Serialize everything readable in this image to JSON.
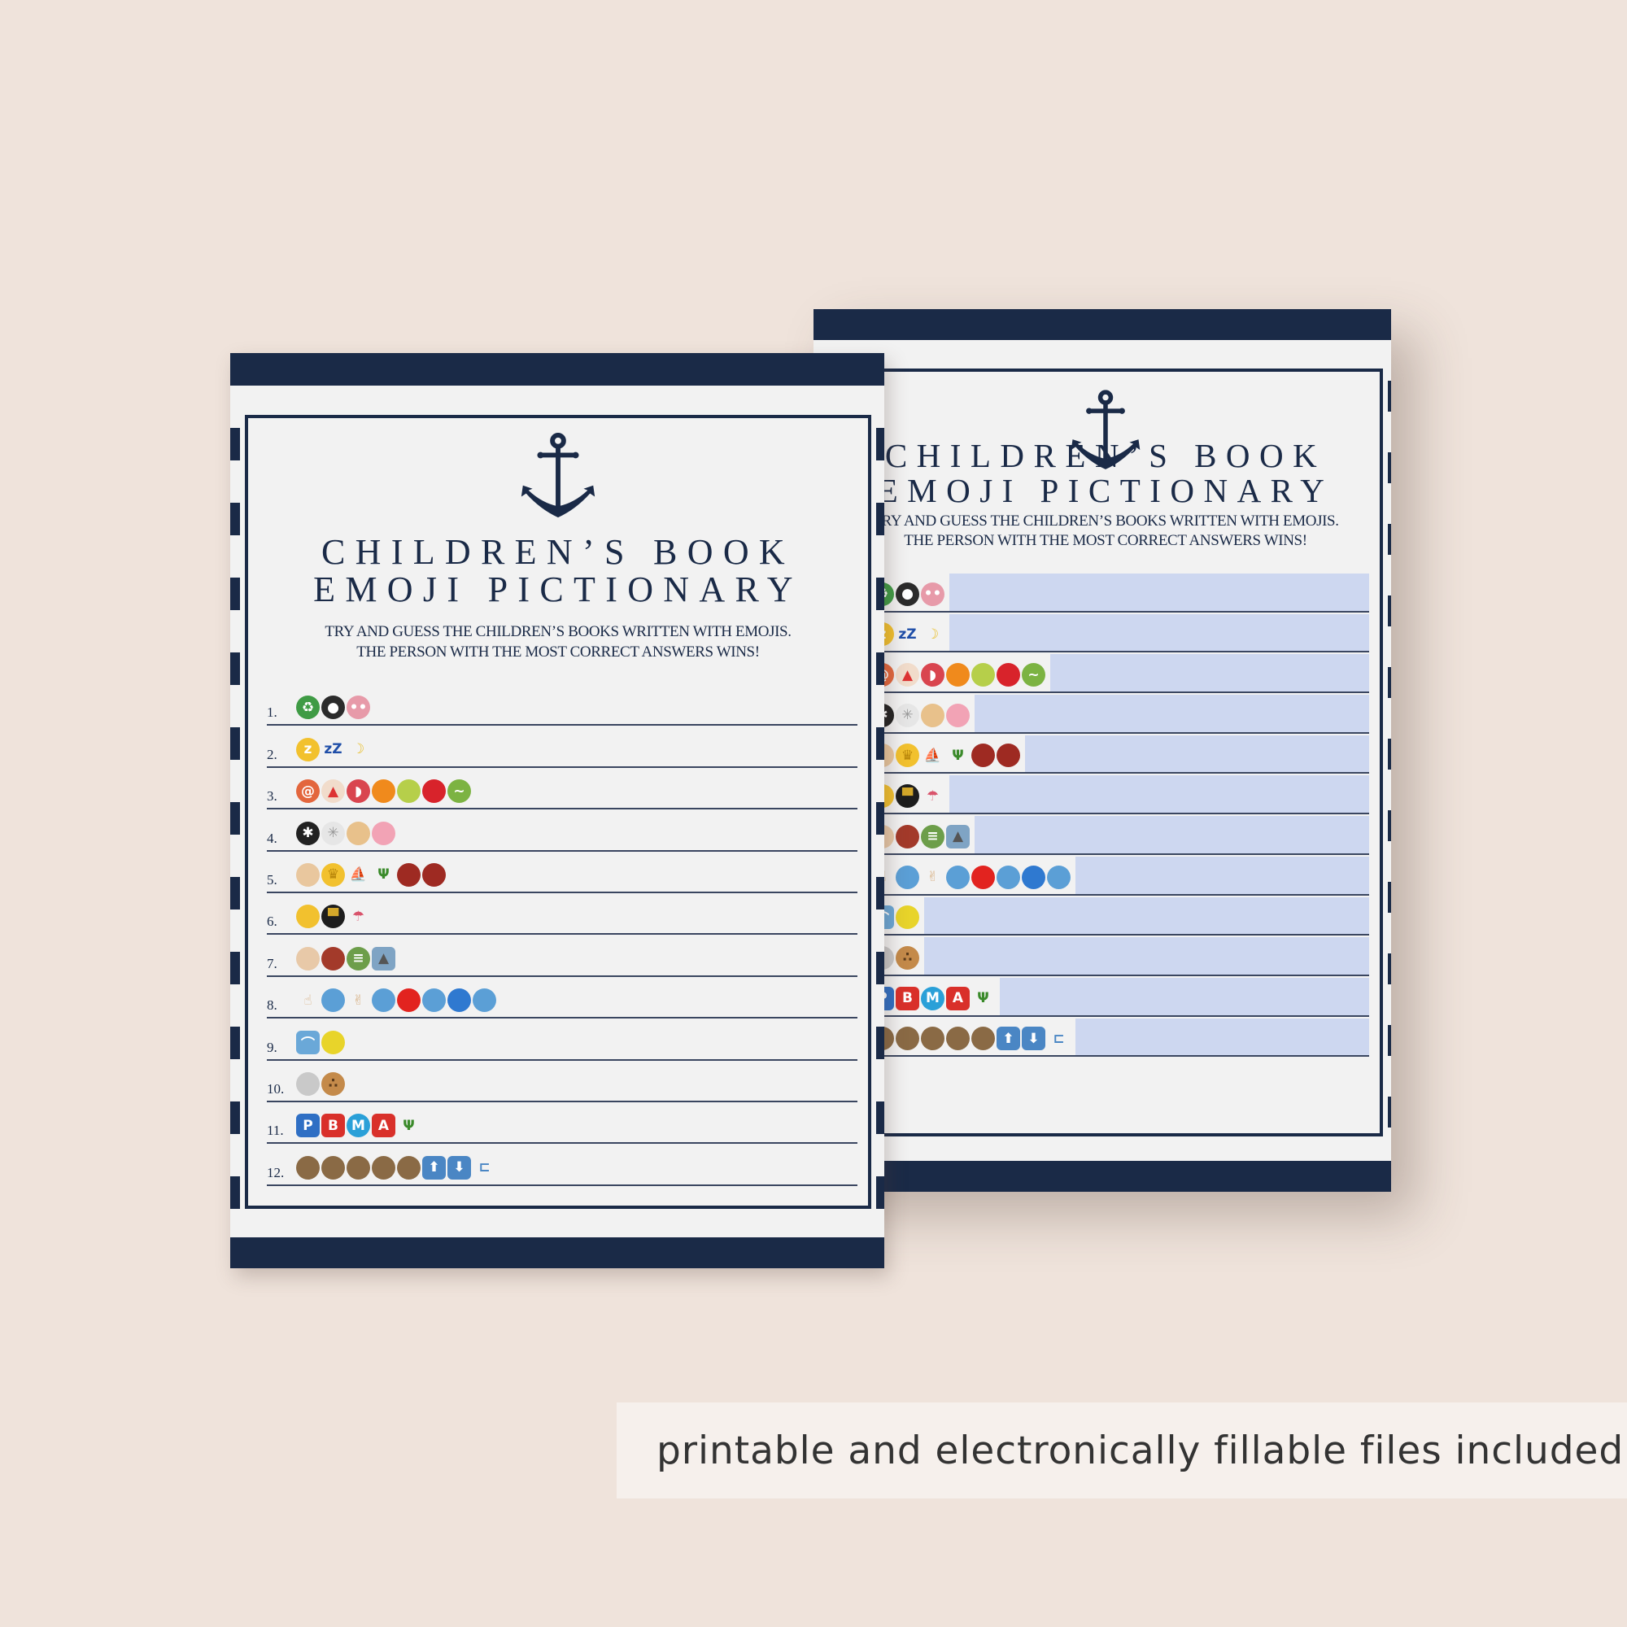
{
  "sheet": {
    "title_line1": "CHILDREN’S BOOK",
    "title_line2": "EMOJI PICTIONARY",
    "instructions_line1": "TRY AND GUESS THE CHILDREN’S BOOKS WRITTEN WITH EMOJIS.",
    "instructions_line2": "THE PERSON WITH THE MOST CORRECT ANSWERS WINS!",
    "anchor_icon": "anchor-icon",
    "rows": [
      {
        "number": "1.",
        "emojis": [
          {
            "icon": "recycle-icon",
            "color": "#3f9b45",
            "glyph": "♻"
          },
          {
            "icon": "frying-pan-egg-icon",
            "color": "#2b2b2b",
            "glyph": "●"
          },
          {
            "icon": "pig-nose-icon",
            "color": "#e79aa9",
            "glyph": "••"
          }
        ]
      },
      {
        "number": "2.",
        "emojis": [
          {
            "icon": "sleeping-face-icon",
            "color": "#f2c12e",
            "glyph": "z"
          },
          {
            "icon": "zzz-icon",
            "color": "#f2f2f2",
            "glyph": "zZ",
            "text": "#1f4ea8"
          },
          {
            "icon": "crescent-moon-icon",
            "color": "#f2f2f2",
            "glyph": "☽",
            "text": "#e9bf2a"
          }
        ]
      },
      {
        "number": "3.",
        "emojis": [
          {
            "icon": "lollipop-icon",
            "color": "#e3663d",
            "glyph": "@"
          },
          {
            "icon": "shortcake-icon",
            "color": "#f1dccb",
            "glyph": "▲",
            "text": "#d33"
          },
          {
            "icon": "watermelon-icon",
            "color": "#d9454f",
            "glyph": "◗"
          },
          {
            "icon": "tangerine-icon",
            "color": "#f08a1c",
            "glyph": ""
          },
          {
            "icon": "pear-icon",
            "color": "#b6cf4a",
            "glyph": ""
          },
          {
            "icon": "apple-icon",
            "color": "#d8232b",
            "glyph": ""
          },
          {
            "icon": "caterpillar-icon",
            "color": "#7cb342",
            "glyph": "~"
          }
        ]
      },
      {
        "number": "4.",
        "emojis": [
          {
            "icon": "spider-icon",
            "color": "#222222",
            "glyph": "✱"
          },
          {
            "icon": "spider-web-icon",
            "color": "#e6e6e6",
            "glyph": "✳",
            "text": "#999"
          },
          {
            "icon": "girl-icon",
            "color": "#e8c18b",
            "glyph": ""
          },
          {
            "icon": "pig-face-icon",
            "color": "#f2a3b5",
            "glyph": ""
          }
        ]
      },
      {
        "number": "5.",
        "emojis": [
          {
            "icon": "boy-icon",
            "color": "#e9c79e",
            "glyph": ""
          },
          {
            "icon": "crown-icon",
            "color": "#f2c12e",
            "glyph": "♛",
            "text": "#b8860b"
          },
          {
            "icon": "sailboat-icon",
            "color": "#f2f2f2",
            "glyph": "⛵",
            "text": "#e55"
          },
          {
            "icon": "palm-tree-icon",
            "color": "#f2f2f2",
            "glyph": "Ψ",
            "text": "#3a8a2a"
          },
          {
            "icon": "ogre-icon",
            "color": "#9e2a22",
            "glyph": ""
          },
          {
            "icon": "ogre-icon",
            "color": "#9e2a22",
            "glyph": ""
          }
        ]
      },
      {
        "number": "6.",
        "emojis": [
          {
            "icon": "smiling-cat-icon",
            "color": "#f2c12e",
            "glyph": ""
          },
          {
            "icon": "top-hat-icon",
            "color": "#1d1d1d",
            "glyph": "▀",
            "text": "#d4a82a"
          },
          {
            "icon": "closed-umbrella-icon",
            "color": "#f2f2f2",
            "glyph": "☂",
            "text": "#d9536b"
          }
        ]
      },
      {
        "number": "7.",
        "emojis": [
          {
            "icon": "flexed-biceps-icon",
            "color": "#e8c9a8",
            "glyph": ""
          },
          {
            "icon": "steam-locomotive-icon",
            "color": "#a33a2a",
            "glyph": ""
          },
          {
            "icon": "railway-track-icon",
            "color": "#6d9e4a",
            "glyph": "≡"
          },
          {
            "icon": "mountain-picture-icon",
            "color": "#7fa4c4",
            "glyph": "▲",
            "text": "#555",
            "square": true
          }
        ]
      },
      {
        "number": "8.",
        "emojis": [
          {
            "icon": "index-pointing-up-icon",
            "color": "#f2f2f2",
            "glyph": "☝",
            "text": "#d9b48a"
          },
          {
            "icon": "fish-icon",
            "color": "#5b9fd6",
            "glyph": ""
          },
          {
            "icon": "victory-hand-icon",
            "color": "#f2f2f2",
            "glyph": "✌",
            "text": "#d9b48a"
          },
          {
            "icon": "fish-icon",
            "color": "#5b9fd6",
            "glyph": ""
          },
          {
            "icon": "red-circle-icon",
            "color": "#e2231f",
            "glyph": ""
          },
          {
            "icon": "fish-icon",
            "color": "#5b9fd6",
            "glyph": ""
          },
          {
            "icon": "blue-circle-icon",
            "color": "#2f79d0",
            "glyph": ""
          },
          {
            "icon": "fish-icon",
            "color": "#5b9fd6",
            "glyph": ""
          }
        ]
      },
      {
        "number": "9.",
        "emojis": [
          {
            "icon": "rainbow-icon",
            "color": "#6aa8d8",
            "glyph": "⌒",
            "square": true
          },
          {
            "icon": "tropical-fish-icon",
            "color": "#e8d42a",
            "glyph": ""
          }
        ]
      },
      {
        "number": "10.",
        "emojis": [
          {
            "icon": "mouse-face-icon",
            "color": "#c9c9c9",
            "glyph": ""
          },
          {
            "icon": "cookie-icon",
            "color": "#c48a4a",
            "glyph": "∴",
            "text": "#5a3a1a"
          }
        ]
      },
      {
        "number": "11.",
        "emojis": [
          {
            "icon": "p-button-icon",
            "color": "#2f6fc4",
            "glyph": "P",
            "square": true
          },
          {
            "icon": "b-button-icon",
            "color": "#d9302a",
            "glyph": "B",
            "square": true
          },
          {
            "icon": "m-circle-icon",
            "color": "#2aa0d8",
            "glyph": "M"
          },
          {
            "icon": "a-button-icon",
            "color": "#d9302a",
            "glyph": "A",
            "square": true
          },
          {
            "icon": "palm-tree-icon",
            "color": "#f2f2f2",
            "glyph": "Ψ",
            "text": "#3a8a2a"
          }
        ]
      },
      {
        "number": "12.",
        "emojis": [
          {
            "icon": "monkey-icon",
            "color": "#8a6a45",
            "glyph": ""
          },
          {
            "icon": "monkey-icon",
            "color": "#8a6a45",
            "glyph": ""
          },
          {
            "icon": "monkey-icon",
            "color": "#8a6a45",
            "glyph": ""
          },
          {
            "icon": "monkey-icon",
            "color": "#8a6a45",
            "glyph": ""
          },
          {
            "icon": "monkey-icon",
            "color": "#8a6a45",
            "glyph": ""
          },
          {
            "icon": "up-arrow-icon",
            "color": "#4a86c4",
            "glyph": "⬆",
            "square": true
          },
          {
            "icon": "down-arrow-icon",
            "color": "#4a86c4",
            "glyph": "⬇",
            "square": true
          },
          {
            "icon": "bed-icon",
            "color": "#f2f2f2",
            "glyph": "⊏",
            "text": "#4a86c4"
          }
        ]
      }
    ]
  },
  "banner": {
    "text": "printable and electronically fillable files included"
  },
  "colors": {
    "navy": "#1a2a47",
    "field": "#cdd7f0",
    "background": "#efe3db"
  }
}
